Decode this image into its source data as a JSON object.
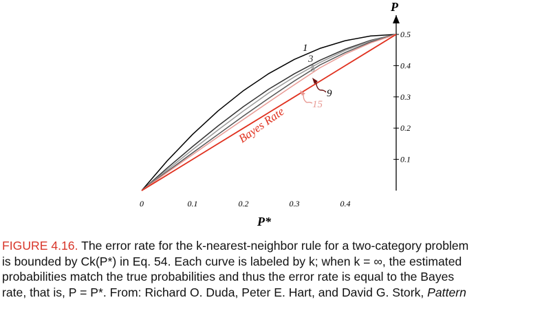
{
  "chart_data": {
    "type": "line",
    "xlabel": "P*",
    "ylabel": "P",
    "xlim": [
      0,
      0.5
    ],
    "ylim": [
      0,
      0.5
    ],
    "x_ticks": [
      "0",
      "0.1",
      "0.2",
      "0.3",
      "0.4"
    ],
    "y_ticks": [
      "0.1",
      "0.2",
      "0.3",
      "0.4",
      "0.5"
    ],
    "x": [
      0,
      0.05,
      0.1,
      0.15,
      0.2,
      0.25,
      0.3,
      0.35,
      0.4,
      0.45,
      0.5
    ],
    "series": [
      {
        "name": "1",
        "color": "#000000",
        "values": [
          0,
          0.095,
          0.18,
          0.255,
          0.32,
          0.375,
          0.42,
          0.455,
          0.48,
          0.495,
          0.5
        ]
      },
      {
        "name": "3",
        "color": "#333333",
        "values": [
          0,
          0.072,
          0.141,
          0.207,
          0.269,
          0.325,
          0.374,
          0.417,
          0.453,
          0.481,
          0.5
        ]
      },
      {
        "name": "5",
        "color": "#9a9a9a",
        "values": [
          0,
          0.066,
          0.131,
          0.194,
          0.255,
          0.313,
          0.364,
          0.41,
          0.449,
          0.479,
          0.5
        ]
      },
      {
        "name": "9",
        "color": "#555555",
        "values": [
          0,
          0.061,
          0.121,
          0.18,
          0.239,
          0.296,
          0.351,
          0.402,
          0.442,
          0.476,
          0.5
        ]
      },
      {
        "name": "15",
        "color": "#e89a94",
        "values": [
          0,
          0.058,
          0.115,
          0.172,
          0.228,
          0.284,
          0.339,
          0.393,
          0.437,
          0.473,
          0.5
        ]
      },
      {
        "name": "Bayes Rate",
        "color": "#e0301e",
        "values": [
          0,
          0.05,
          0.1,
          0.15,
          0.2,
          0.25,
          0.3,
          0.35,
          0.4,
          0.45,
          0.5
        ]
      }
    ],
    "annotations": [
      "1",
      "3",
      "5",
      "9",
      "15",
      "Bayes Rate"
    ]
  },
  "caption": {
    "figure_label": "FIGURE 4.16.",
    "line1": " The error rate for the k-nearest-neighbor rule for a two-category problem",
    "line2": "is bounded by Ck(P*) in Eq. 54. Each curve is labeled by k; when k = ∞, the estimated",
    "line3": "probabilities match the true probabilities and thus the error rate is equal to the Bayes",
    "line4_main": "rate, that is, P = P*. From: Richard O. Duda, Peter E. Hart, and David G. Stork, ",
    "line4_italic": "Pattern"
  }
}
